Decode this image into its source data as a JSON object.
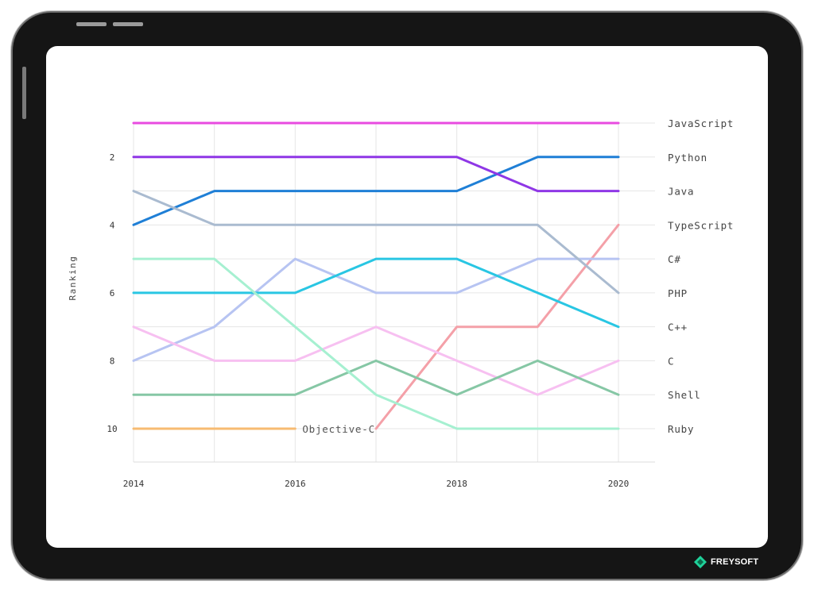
{
  "brand": {
    "name": "FREYSOFT",
    "icon": "freysoft-logo-icon",
    "accent": "#1fd19a"
  },
  "chart_data": {
    "type": "line",
    "title": "",
    "xlabel": "",
    "ylabel": "Ranking",
    "y_reversed": true,
    "xlim": [
      2014,
      2020
    ],
    "ylim": [
      1,
      11
    ],
    "x": [
      2014,
      2015,
      2016,
      2017,
      2018,
      2019,
      2020
    ],
    "x_tick_labels": [
      "2014",
      "2016",
      "2018",
      "2020"
    ],
    "y_tick_labels": [
      "2",
      "4",
      "6",
      "8",
      "10"
    ],
    "grid": true,
    "legend": "end-of-line labels on the right",
    "series": [
      {
        "name": "JavaScript",
        "color": "#e84be0",
        "values": [
          1,
          1,
          1,
          1,
          1,
          1,
          1
        ]
      },
      {
        "name": "Python",
        "color": "#1f7fd6",
        "values": [
          4,
          3,
          3,
          3,
          3,
          2,
          2
        ]
      },
      {
        "name": "Java",
        "color": "#8f37e6",
        "values": [
          2,
          2,
          2,
          2,
          2,
          3,
          3
        ]
      },
      {
        "name": "TypeScript",
        "color": "#f4a0a8",
        "values": [
          null,
          null,
          null,
          10,
          7,
          7,
          4
        ]
      },
      {
        "name": "C#",
        "color": "#b7c4f2",
        "values": [
          8,
          7,
          5,
          6,
          6,
          5,
          5
        ]
      },
      {
        "name": "PHP",
        "color": "#aabbd0",
        "values": [
          3,
          4,
          4,
          4,
          4,
          4,
          6
        ]
      },
      {
        "name": "C++",
        "color": "#29c6e3",
        "values": [
          6,
          6,
          6,
          5,
          5,
          6,
          7
        ]
      },
      {
        "name": "C",
        "color": "#f7c0f1",
        "values": [
          7,
          8,
          8,
          7,
          8,
          9,
          8
        ]
      },
      {
        "name": "Shell",
        "color": "#86c7a5",
        "values": [
          9,
          9,
          9,
          8,
          9,
          8,
          9
        ]
      },
      {
        "name": "Ruby",
        "color": "#a6f0d1",
        "values": [
          5,
          5,
          7,
          9,
          10,
          10,
          10
        ]
      },
      {
        "name": "Objective-C",
        "color": "#f7bb72",
        "values": [
          10,
          10,
          10,
          null,
          null,
          null,
          null
        ],
        "label_position": "inline-end"
      }
    ],
    "right_labels": [
      "JavaScript",
      "Python",
      "Java",
      "TypeScript",
      "C#",
      "PHP",
      "C++",
      "C",
      "Shell",
      "Ruby"
    ]
  }
}
